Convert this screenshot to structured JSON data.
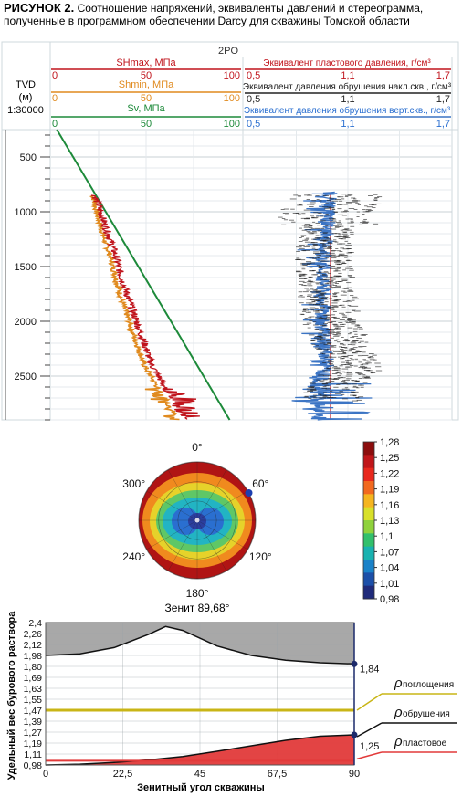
{
  "figure": {
    "title_lead": "РИСУНОК 2.",
    "title_line1": "Соотношение напряжений, эквиваленты давлений и стереограмма,",
    "title_line2": "полученные в программном обеспечении Darcy для скважины Томской области"
  },
  "colors": {
    "shmax": "#c0141c",
    "shmin": "#e08a1e",
    "sv": "#1d8a3a",
    "pore": "#c0141c",
    "collapse_incl": "#222222",
    "collapse_vert": "#3b74c4",
    "cyan_text": "#2a6fd0",
    "area_gray": "#a8a8a8",
    "area_red": "#e23a3a",
    "loss_line": "#c9b516",
    "collapse_marker": "#1c2a6b",
    "pore_line": "#e23a3a"
  },
  "chart_data": [
    {
      "type": "line",
      "name": "well-log",
      "well_name": "2PO",
      "depth_axis": {
        "label_line1": "TVD",
        "label_line2": "(м)",
        "label_line3": "1:30000",
        "ticks": [
          500,
          1000,
          1500,
          2000,
          2500
        ],
        "range": [
          250,
          2900
        ]
      },
      "track1": {
        "headers": [
          {
            "label": "SHmax, МПа",
            "min": "0",
            "mid": "50",
            "max": "100",
            "color_key": "shmax"
          },
          {
            "label": "Shmin, МПа",
            "min": "0",
            "mid": "50",
            "max": "100",
            "color_key": "shmin"
          },
          {
            "label": "Sv, МПа",
            "min": "0",
            "mid": "50",
            "max": "100",
            "color_key": "sv"
          }
        ],
        "range": [
          0,
          100
        ],
        "series": [
          {
            "name": "SHmax",
            "color_key": "shmax",
            "depth": [
              850,
              1000,
              1200,
              1400,
              1600,
              1800,
              2000,
              2200,
              2400,
              2600,
              2900
            ],
            "values": [
              23,
              26,
              30,
              34,
              37,
              41,
              45,
              49,
              53,
              60,
              70
            ]
          },
          {
            "name": "Shmin",
            "color_key": "shmin",
            "depth": [
              850,
              1000,
              1200,
              1400,
              1600,
              1800,
              2000,
              2200,
              2400,
              2600,
              2900
            ],
            "values": [
              22,
              24,
              27,
              31,
              34,
              37,
              41,
              45,
              49,
              56,
              67
            ]
          },
          {
            "name": "Sv",
            "color_key": "sv",
            "depth": [
              250,
              2900
            ],
            "values": [
              3,
              94
            ]
          }
        ]
      },
      "track2": {
        "headers": [
          {
            "label": "Эквивалент пластового давления, г/см³",
            "min": "0,5",
            "mid": "1,1",
            "max": "1,7",
            "color_key": "pore"
          },
          {
            "label": "Эквивалент давления обрушения накл.скв., г/см³",
            "min": "0,5",
            "mid": "1,1",
            "max": "1,7",
            "color_key": "collapse_incl"
          },
          {
            "label": "Эквивалент давления обрушения верт.скв., г/см³",
            "min": "0,5",
            "mid": "1,1",
            "max": "1,7",
            "color_key": "collapse_vert"
          }
        ],
        "range": [
          0.5,
          1.7
        ],
        "series": [
          {
            "name": "pore",
            "color_key": "pore",
            "depth": [
              820,
              2900
            ],
            "values": [
              1.0,
              1.0
            ]
          },
          {
            "name": "collapse_vertical",
            "color_key": "collapse_vert",
            "depth": [
              820,
              1000,
              1200,
              1400,
              1600,
              1800,
              2000,
              2200,
              2400,
              2600,
              2900
            ],
            "values": [
              1.0,
              0.99,
              0.98,
              0.96,
              0.95,
              0.96,
              0.95,
              0.96,
              0.98,
              0.92,
              0.93
            ]
          },
          {
            "name": "collapse_inclined",
            "color_key": "collapse_incl",
            "depth": [
              820,
              1000,
              1200,
              1400,
              1600,
              1800,
              2000,
              2200,
              2400,
              2600,
              2900
            ],
            "values": [
              1.02,
              0.97,
              0.96,
              0.95,
              0.96,
              0.97,
              0.99,
              1.05,
              1.12,
              1.0,
              1.0
            ]
          }
        ]
      }
    },
    {
      "type": "heatmap",
      "name": "stereogram",
      "angles": [
        "0°",
        "60°",
        "120°",
        "180°",
        "240°",
        "300°"
      ],
      "caption": "Зенит 89,68°",
      "colorbar": {
        "labels": [
          "1,28",
          "1,25",
          "1,22",
          "1,19",
          "1,16",
          "1,13",
          "1,1",
          "1,07",
          "1,04",
          "1,01",
          "0,98"
        ],
        "colors": [
          "#8c0d0d",
          "#c0161a",
          "#e8281d",
          "#f2691f",
          "#f5b51f",
          "#d8e02a",
          "#8fd23c",
          "#32c06c",
          "#19b2b0",
          "#1a82c8",
          "#1c4fa8",
          "#1f2a7a"
        ]
      },
      "marker_azimuth_deg": 62
    },
    {
      "type": "area",
      "name": "mud-weight-vs-inclination",
      "xlabel": "Зенитный угол скважины",
      "ylabel": "Удельный вес бурового раствора",
      "x_ticks": [
        "0",
        "22,5",
        "45",
        "67,5",
        "90"
      ],
      "y_ticks": [
        "0,98",
        "1,11",
        "1,19",
        "1,27",
        "1,39",
        "1,47",
        "1,55",
        "1,63",
        "1,69",
        "1,80",
        "1,98",
        "2,12",
        "2,26",
        "2,4"
      ],
      "xlim": [
        0,
        90
      ],
      "ylim": [
        0.98,
        2.4
      ],
      "series": [
        {
          "name": "loss",
          "color_key": "area_gray",
          "x": [
            0,
            10,
            20,
            30,
            35,
            40,
            50,
            60,
            70,
            80,
            90
          ],
          "values": [
            1.98,
            2.0,
            2.08,
            2.25,
            2.35,
            2.3,
            2.1,
            1.98,
            1.9,
            1.86,
            1.84
          ]
        },
        {
          "name": "collapse",
          "color_key": "area_red",
          "x": [
            0,
            10,
            20,
            30,
            40,
            50,
            60,
            70,
            80,
            90
          ],
          "values": [
            0.98,
            0.99,
            1.01,
            1.04,
            1.08,
            1.13,
            1.17,
            1.21,
            1.24,
            1.25
          ]
        }
      ],
      "hlines": [
        {
          "name": "loss-level",
          "value": 1.47,
          "color_key": "loss_line"
        },
        {
          "name": "pore-level",
          "value": 1.03,
          "color_key": "pore_line"
        }
      ],
      "end_labels": [
        "1,84",
        "1,25"
      ],
      "legend": [
        {
          "label_rho": "ρ",
          "label_sub": "поглощения"
        },
        {
          "label_rho": "ρ",
          "label_sub": "обрушения"
        },
        {
          "label_rho": "ρ",
          "label_sub": "пластовое"
        }
      ]
    }
  ]
}
